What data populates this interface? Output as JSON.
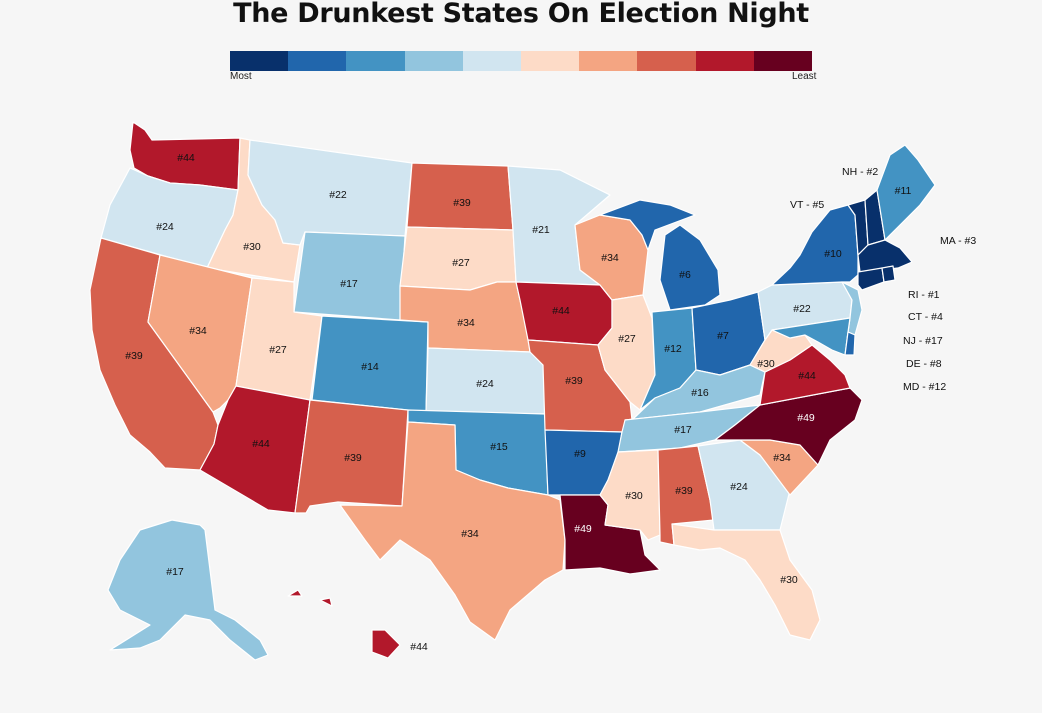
{
  "title": "The Drunkest States On Election Night",
  "legend": {
    "most_label": "Most",
    "least_label": "Least",
    "colors": [
      "#08306b",
      "#2166ac",
      "#4393c3",
      "#92c5de",
      "#d1e5f0",
      "#fddbc7",
      "#f4a582",
      "#d6604d",
      "#b2182b",
      "#67001f"
    ]
  },
  "states": {
    "WA": {
      "rank": "#44",
      "color": "#b2182b"
    },
    "OR": {
      "rank": "#24",
      "color": "#d1e5f0"
    },
    "CA": {
      "rank": "#39",
      "color": "#d6604d"
    },
    "ID": {
      "rank": "#30",
      "color": "#fddbc7"
    },
    "NV": {
      "rank": "#34",
      "color": "#f4a582"
    },
    "MT": {
      "rank": "#22",
      "color": "#d1e5f0"
    },
    "WY": {
      "rank": "#17",
      "color": "#92c5de"
    },
    "UT": {
      "rank": "#27",
      "color": "#fddbc7"
    },
    "AZ": {
      "rank": "#44",
      "color": "#b2182b"
    },
    "CO": {
      "rank": "#14",
      "color": "#4393c3"
    },
    "NM": {
      "rank": "#39",
      "color": "#d6604d"
    },
    "ND": {
      "rank": "#39",
      "color": "#d6604d"
    },
    "SD": {
      "rank": "#27",
      "color": "#fddbc7"
    },
    "NE": {
      "rank": "#34",
      "color": "#f4a582"
    },
    "KS": {
      "rank": "#24",
      "color": "#d1e5f0"
    },
    "OK": {
      "rank": "#15",
      "color": "#4393c3"
    },
    "TX": {
      "rank": "#34",
      "color": "#f4a582"
    },
    "MN": {
      "rank": "#21",
      "color": "#d1e5f0"
    },
    "IA": {
      "rank": "#44",
      "color": "#b2182b"
    },
    "MO": {
      "rank": "#39",
      "color": "#d6604d"
    },
    "AR": {
      "rank": "#9",
      "color": "#2166ac"
    },
    "LA": {
      "rank": "#49",
      "color": "#67001f"
    },
    "WI": {
      "rank": "#34",
      "color": "#f4a582"
    },
    "IL": {
      "rank": "#27",
      "color": "#fddbc7"
    },
    "MI": {
      "rank": "#6",
      "color": "#2166ac"
    },
    "IN": {
      "rank": "#12",
      "color": "#4393c3"
    },
    "OH": {
      "rank": "#7",
      "color": "#2166ac"
    },
    "KY": {
      "rank": "#16",
      "color": "#92c5de"
    },
    "TN": {
      "rank": "#17",
      "color": "#92c5de"
    },
    "MS": {
      "rank": "#30",
      "color": "#fddbc7"
    },
    "AL": {
      "rank": "#39",
      "color": "#d6604d"
    },
    "GA": {
      "rank": "#24",
      "color": "#d1e5f0"
    },
    "FL": {
      "rank": "#30",
      "color": "#fddbc7"
    },
    "SC": {
      "rank": "#34",
      "color": "#f4a582"
    },
    "NC": {
      "rank": "#49",
      "color": "#67001f"
    },
    "VA": {
      "rank": "#44",
      "color": "#b2182b"
    },
    "WV": {
      "rank": "#30",
      "color": "#fddbc7"
    },
    "PA": {
      "rank": "#22",
      "color": "#d1e5f0"
    },
    "NY": {
      "rank": "#10",
      "color": "#2166ac"
    },
    "ME": {
      "rank": "#11",
      "color": "#4393c3"
    },
    "AK": {
      "rank": "#17",
      "color": "#92c5de"
    },
    "HI": {
      "rank": "#44",
      "color": "#b2182b"
    },
    "VT": {
      "rank": "#5",
      "color": "#08306b"
    },
    "NH": {
      "rank": "#2",
      "color": "#08306b"
    },
    "MA": {
      "rank": "#3",
      "color": "#08306b"
    },
    "RI": {
      "rank": "#1",
      "color": "#08306b"
    },
    "CT": {
      "rank": "#4",
      "color": "#08306b"
    },
    "NJ": {
      "rank": "#17",
      "color": "#92c5de"
    },
    "DE": {
      "rank": "#8",
      "color": "#2166ac"
    },
    "MD": {
      "rank": "#12",
      "color": "#4393c3"
    }
  },
  "callouts": {
    "VT": "VT - #5",
    "NH": "NH - #2",
    "MA": "MA - #3",
    "RI": "RI - #1",
    "CT": "CT - #4",
    "NJ": "NJ - #17",
    "DE": "DE - #8",
    "MD": "MD - #12"
  }
}
